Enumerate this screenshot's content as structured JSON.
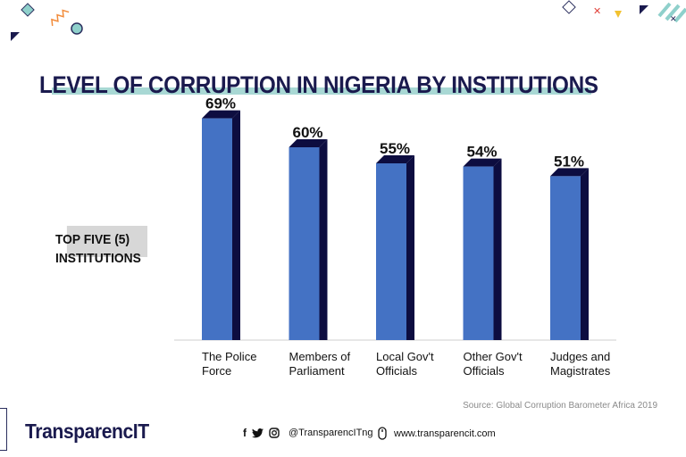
{
  "chart_data": {
    "type": "bar",
    "title": "LEVEL OF CORRUPTION IN NIGERIA BY INSTITUTIONS",
    "categories": [
      [
        "The Police",
        "Force"
      ],
      [
        "Members of",
        "Parliament"
      ],
      [
        "Local Gov't",
        "Officials"
      ],
      [
        "Other Gov't",
        "Officials"
      ],
      [
        "Judges and",
        "Magistrates"
      ]
    ],
    "values": [
      69,
      60,
      55,
      54,
      51
    ],
    "value_labels": [
      "69%",
      "60%",
      "55%",
      "54%",
      "51%"
    ],
    "unit": "%",
    "ylim": [
      0,
      75
    ],
    "grid": false,
    "bar_color": "#4472c4",
    "bar_side_color": "#0d0d40"
  },
  "side_label": {
    "line1": "TOP FIVE (5)",
    "line2": "INSTITUTIONS"
  },
  "source": "Source: Global Corruption Barometer Africa 2019",
  "footer": {
    "logo": "TransparencIT",
    "social_icons": [
      "facebook-icon",
      "twitter-icon",
      "instagram-icon"
    ],
    "social_handle": "@TransparencITng",
    "website": "www.transparencit.com",
    "mouse_icon": "mouse-icon"
  },
  "colors": {
    "title": "#1a1a4e",
    "title_underline": "#a8d8d4",
    "accent_teal": "#8fd0cb",
    "accent_orange": "#f28c3b",
    "accent_red": "#e0413a",
    "accent_yellow": "#f2c230"
  }
}
